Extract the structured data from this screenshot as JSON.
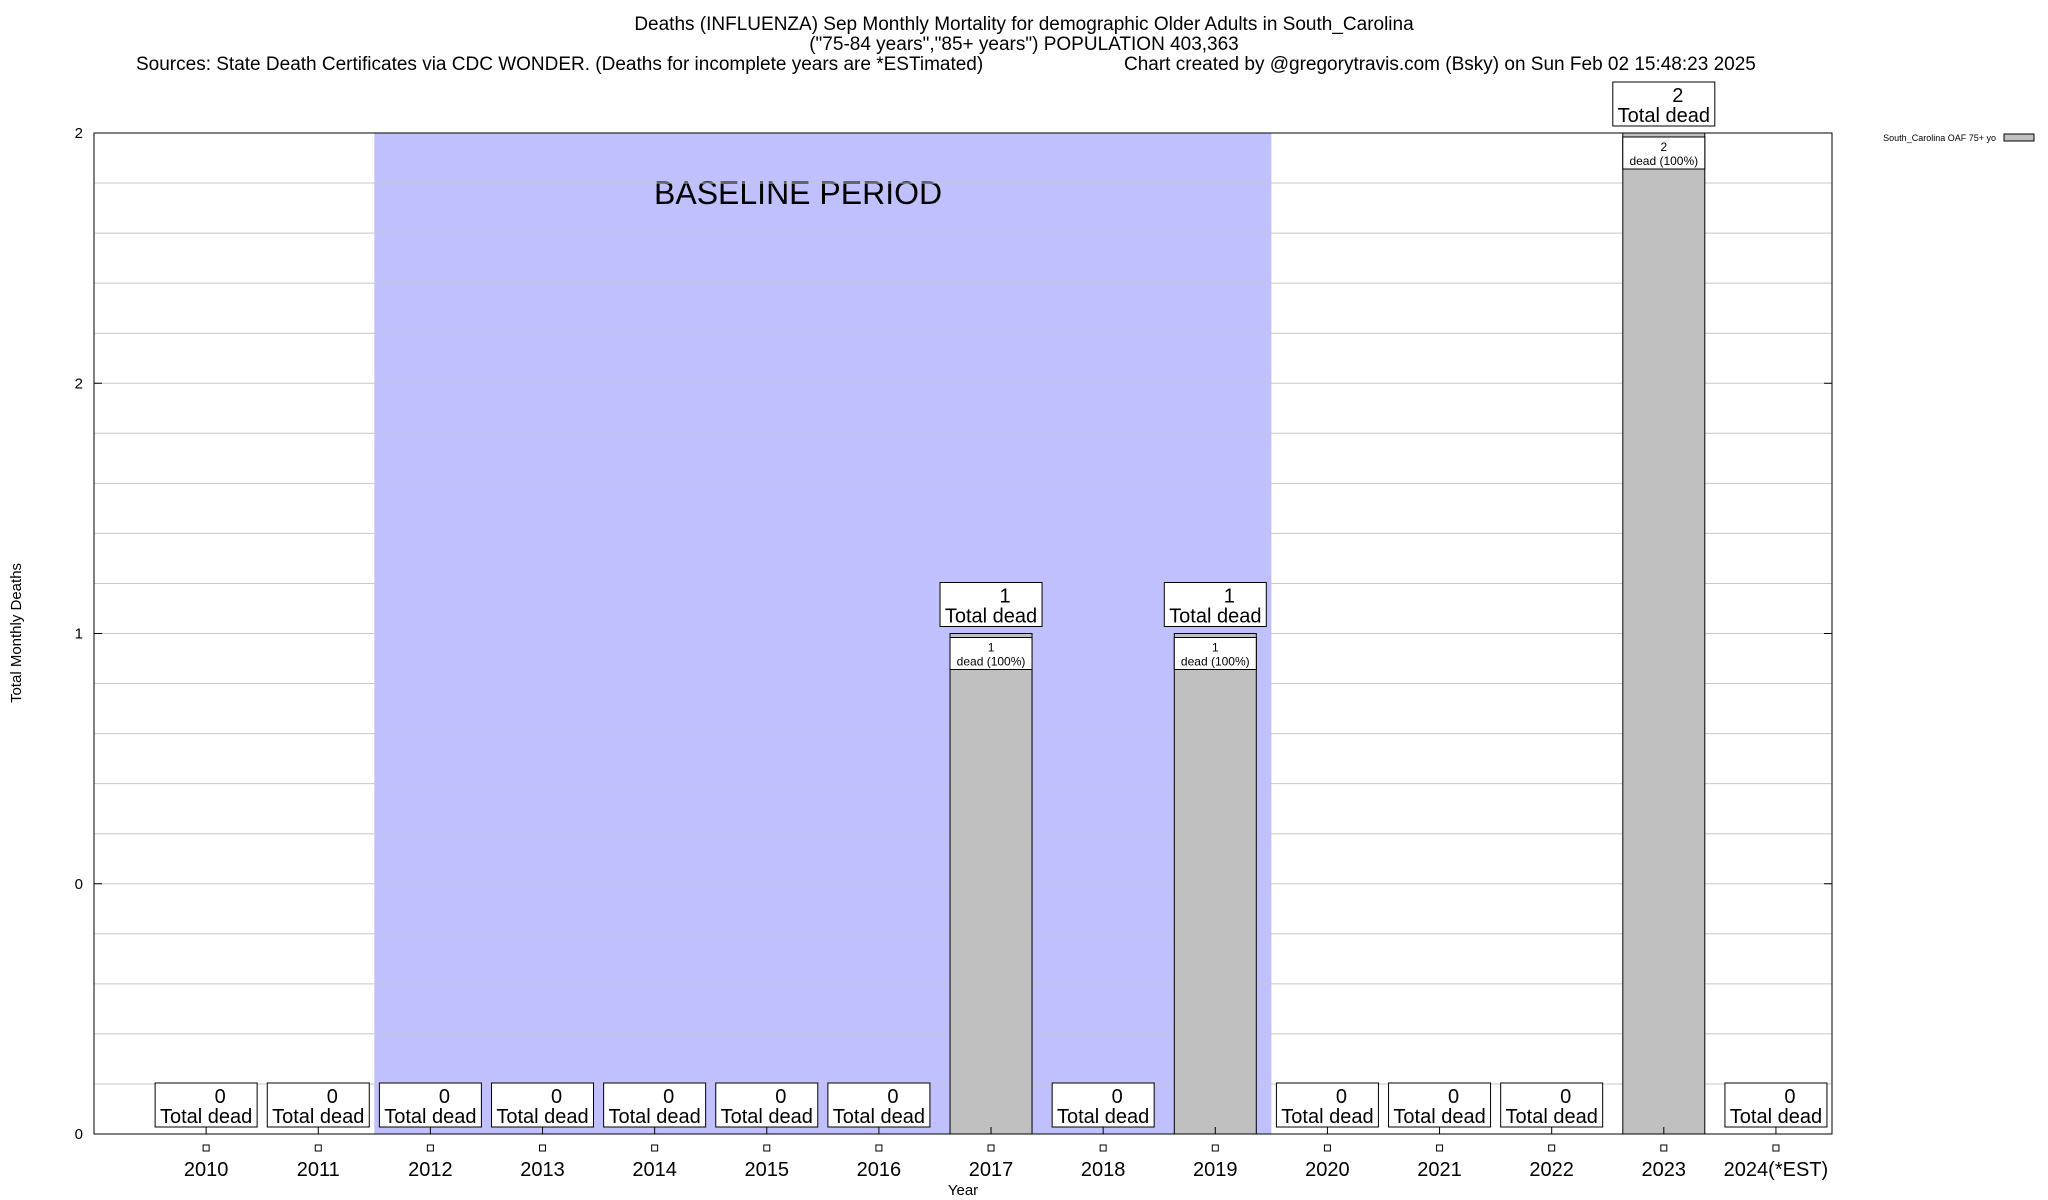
{
  "header": {
    "title_line1": "Deaths (INFLUENZA) Sep Monthly Mortality for demographic Older Adults in South_Carolina",
    "title_line2": "(\"75-84 years\",\"85+ years\") POPULATION 403,363",
    "sources": "Sources: State Death Certificates via CDC WONDER. (Deaths for incomplete years are *ESTimated)",
    "credit": "Chart created by @gregorytravis.com (Bsky) on Sun Feb 02 15:48:23 2025"
  },
  "colors": {
    "baseline_band": "#c0c0ff",
    "bar_fill": "#c0c0c0",
    "grid": "#c8c8c8",
    "axis": "#000000"
  },
  "chart_data": {
    "type": "bar",
    "xlabel": "Year",
    "ylabel": "Total Monthly Deaths",
    "ylim": [
      0,
      2
    ],
    "y_tick_labels": [
      "0",
      "0",
      "1",
      "2",
      "2"
    ],
    "grid": true,
    "legend_position": "top-right, outside plot",
    "categories": [
      "2010",
      "2011",
      "2012",
      "2013",
      "2014",
      "2015",
      "2016",
      "2017",
      "2018",
      "2019",
      "2020",
      "2021",
      "2022",
      "2023",
      "2024(*EST)"
    ],
    "series": [
      {
        "name": "South_Carolina OAF 75+ yo",
        "values": [
          0,
          0,
          0,
          0,
          0,
          0,
          0,
          1,
          0,
          1,
          0,
          0,
          0,
          2,
          0
        ]
      }
    ],
    "total_label_suffix": "Total dead",
    "inner_label_suffix": "dead (100%)",
    "baseline_period": {
      "label": "BASELINE PERIOD",
      "from_category": "2012",
      "to_category": "2019"
    }
  }
}
